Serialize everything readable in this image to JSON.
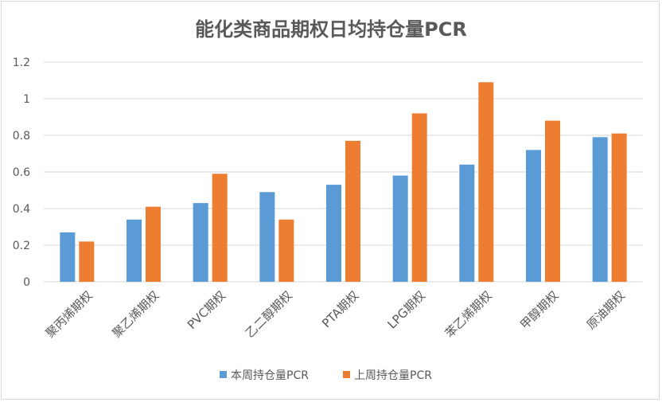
{
  "colors": {
    "series1": "#5b9bd5",
    "series2": "#ed7d31",
    "grid": "#d9d9d9",
    "text": "#595959"
  },
  "chart_data": {
    "type": "bar",
    "title": "能化类商品期权日均持仓量PCR",
    "xlabel": "",
    "ylabel": "",
    "ylim": [
      0,
      1.2
    ],
    "yticks": [
      "0",
      "0.2",
      "0.4",
      "0.6",
      "0.8",
      "1",
      "1.2"
    ],
    "grid": true,
    "legend_position": "bottom",
    "categories": [
      "聚丙烯期权",
      "聚乙烯期权",
      "PVC期权",
      "乙二醇期权",
      "PTA期权",
      "LPG期权",
      "苯乙烯期权",
      "甲醇期权",
      "原油期权"
    ],
    "series": [
      {
        "name": "本周持仓量PCR",
        "values": [
          0.27,
          0.34,
          0.43,
          0.49,
          0.53,
          0.58,
          0.64,
          0.72,
          0.79
        ]
      },
      {
        "name": "上周持仓量PCR",
        "values": [
          0.22,
          0.41,
          0.59,
          0.34,
          0.77,
          0.92,
          1.09,
          0.88,
          0.81
        ]
      }
    ]
  }
}
